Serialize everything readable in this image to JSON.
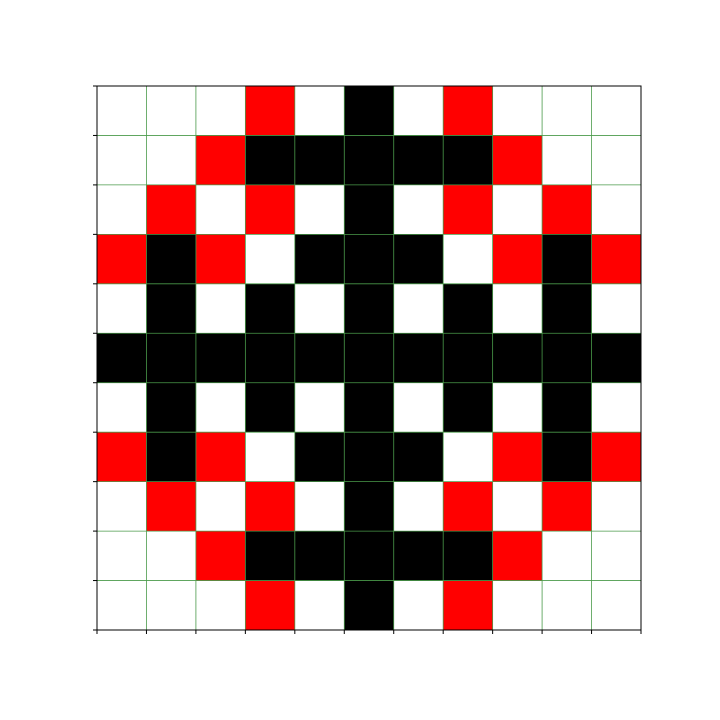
{
  "grid": {
    "rows": 11,
    "cols": 11,
    "palette": {
      "0": "#ffffff",
      "1": "#000000",
      "2": "#ff0000"
    },
    "grid_line_color": "#4a9a4a",
    "frame_color": "#000000",
    "tick_marks": true,
    "cells": [
      [
        0,
        0,
        0,
        2,
        0,
        1,
        0,
        2,
        0,
        0,
        0
      ],
      [
        0,
        0,
        2,
        1,
        1,
        1,
        1,
        1,
        2,
        0,
        0
      ],
      [
        0,
        2,
        0,
        2,
        0,
        1,
        0,
        2,
        0,
        2,
        0
      ],
      [
        2,
        1,
        2,
        0,
        1,
        1,
        1,
        0,
        2,
        1,
        2
      ],
      [
        0,
        1,
        0,
        1,
        0,
        1,
        0,
        1,
        0,
        1,
        0
      ],
      [
        1,
        1,
        1,
        1,
        1,
        1,
        1,
        1,
        1,
        1,
        1
      ],
      [
        0,
        1,
        0,
        1,
        0,
        1,
        0,
        1,
        0,
        1,
        0
      ],
      [
        2,
        1,
        2,
        0,
        1,
        1,
        1,
        0,
        2,
        1,
        2
      ],
      [
        0,
        2,
        0,
        2,
        0,
        1,
        0,
        2,
        0,
        2,
        0
      ],
      [
        0,
        0,
        2,
        1,
        1,
        1,
        1,
        1,
        2,
        0,
        0
      ],
      [
        0,
        0,
        0,
        2,
        0,
        1,
        0,
        2,
        0,
        0,
        0
      ]
    ]
  }
}
